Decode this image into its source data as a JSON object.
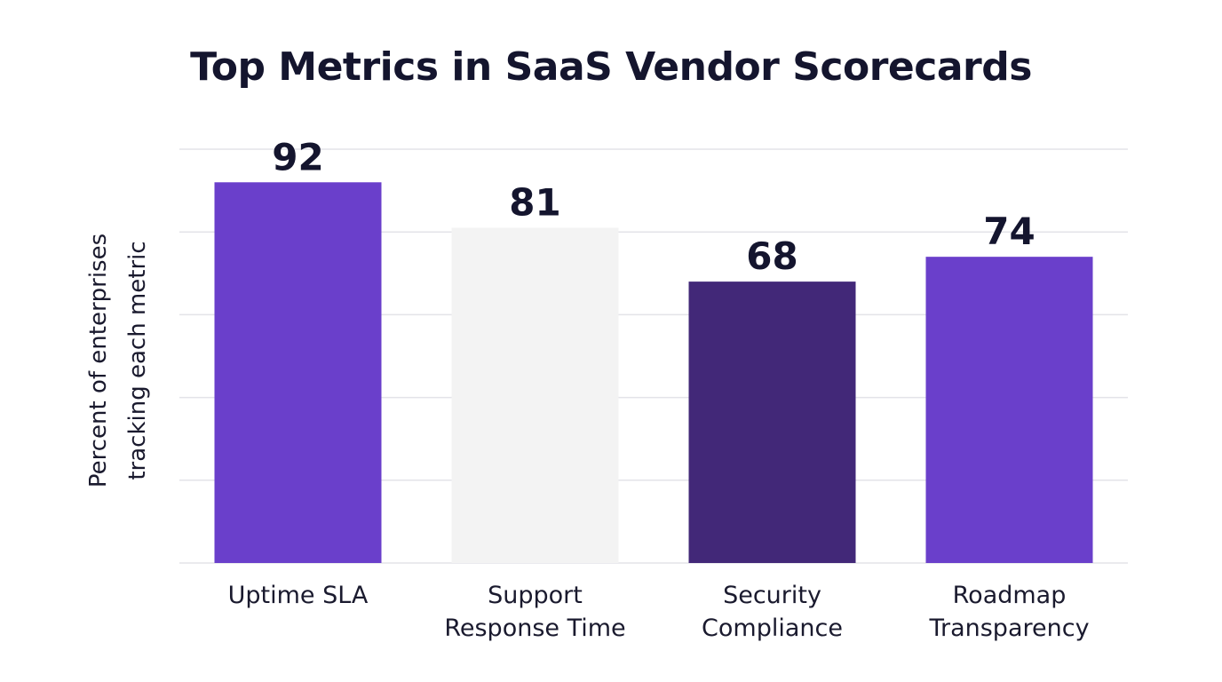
{
  "chart_data": {
    "type": "bar",
    "title": "Top Metrics in SaaS Vendor Scorecards",
    "ylabel": "Percent of enterprises tracking each metric",
    "xlabel": "",
    "categories": [
      [
        "Uptime SLA"
      ],
      [
        "Support",
        "Response Time"
      ],
      [
        "Security",
        "Compliance"
      ],
      [
        "Roadmap",
        "Transparency"
      ]
    ],
    "values": [
      92,
      81,
      68,
      74
    ],
    "value_labels": [
      "92",
      "81",
      "68",
      "74"
    ],
    "bar_colors": [
      "#6a3fcb",
      "#f3f3f3",
      "#422878",
      "#6a3fcb"
    ],
    "ylim": [
      0,
      100
    ],
    "grid": true,
    "grid_color": "#e3e3e8",
    "legend": "none"
  }
}
